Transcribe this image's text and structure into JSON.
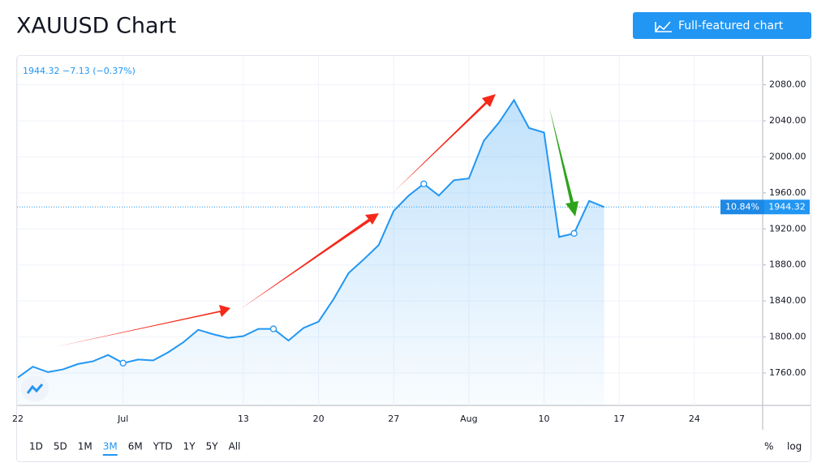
{
  "header": {
    "title": "XAUUSD Chart",
    "button": "Full-featured chart"
  },
  "chart_data": {
    "type": "area",
    "legend_text": "1944.32 −7.13 (−0.37%)",
    "categories": [
      "22",
      null,
      null,
      null,
      null,
      null,
      null,
      "Jul",
      null,
      null,
      null,
      null,
      null,
      null,
      null,
      "13",
      null,
      null,
      null,
      null,
      "20",
      null,
      null,
      null,
      null,
      "27",
      null,
      null,
      null,
      null,
      "Aug",
      null,
      null,
      null,
      null,
      "10",
      null,
      null,
      null,
      null,
      "17",
      null,
      null,
      null,
      null,
      "24"
    ],
    "series": [
      {
        "name": "XAUUSD",
        "color": "#2196f3",
        "values": [
          1755,
          1767,
          1761,
          1764,
          1770,
          1773,
          1780,
          1771,
          1775,
          1774,
          1783,
          1794,
          1808,
          1803,
          1799,
          1801,
          1809,
          1809,
          1796,
          1810,
          1817,
          1842,
          1871,
          1886,
          1902,
          1940,
          1957,
          1970,
          1957,
          1974,
          1976,
          2018,
          2038,
          2063,
          2032,
          2027,
          1911,
          1915,
          1951,
          1944.32,
          null,
          null,
          null,
          null,
          null,
          null
        ]
      }
    ],
    "ylim": [
      1724,
      2112
    ],
    "yticks": [
      {
        "value": 1760,
        "label": "1760.00"
      },
      {
        "value": 1800,
        "label": "1800.00"
      },
      {
        "value": 1840,
        "label": "1840.00"
      },
      {
        "value": 1880,
        "label": "1880.00"
      },
      {
        "value": 1920,
        "label": "1920.00"
      },
      {
        "value": 1960,
        "label": "1960.00"
      },
      {
        "value": 2000,
        "label": "2000.00"
      },
      {
        "value": 2040,
        "label": "2040.00"
      },
      {
        "value": 2080,
        "label": "2080.00"
      }
    ],
    "grid": true,
    "last_price": 1944.32,
    "last_change_label": "10.84%",
    "ranges": [
      "1D",
      "5D",
      "1M",
      "3M",
      "6M",
      "YTD",
      "1Y",
      "5Y",
      "All"
    ],
    "active_range": "3M",
    "scale_buttons": [
      "%",
      "log"
    ]
  }
}
